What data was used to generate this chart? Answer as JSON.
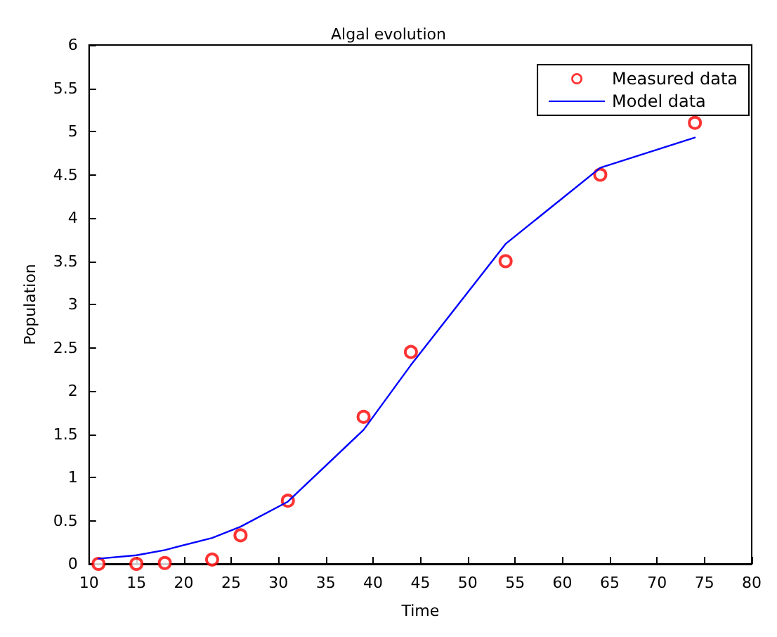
{
  "chart_data": {
    "type": "scatter",
    "title": "Algal evolution",
    "xlabel": "Time",
    "ylabel": "Population",
    "xlim": [
      10,
      80
    ],
    "xticks": [
      10,
      15,
      20,
      25,
      30,
      35,
      40,
      45,
      50,
      55,
      60,
      65,
      70,
      75,
      80
    ],
    "ylim": [
      0,
      6
    ],
    "yticks": [
      0,
      0.5,
      1,
      1.5,
      2,
      2.5,
      3,
      3.5,
      4,
      4.5,
      5,
      5.5,
      6
    ],
    "grid": false,
    "legend": "top right",
    "series": [
      {
        "name": "Measured data",
        "marker": "circle",
        "color": "#ff0000",
        "x": [
          11,
          15,
          18,
          23,
          26,
          31,
          39,
          44,
          54,
          64,
          74
        ],
        "values": [
          0,
          0,
          0.01,
          0.05,
          0.33,
          0.73,
          1.7,
          2.45,
          3.5,
          4.5,
          5.1
        ]
      },
      {
        "name": "Model data",
        "type": "line",
        "marker": "none",
        "line_style": "solid",
        "color": "#0000ff",
        "x": [
          11,
          15,
          18,
          23,
          26,
          31,
          39,
          44,
          54,
          64,
          74
        ],
        "values": [
          0.06,
          0.1,
          0.16,
          0.3,
          0.43,
          0.72,
          1.55,
          2.3,
          3.7,
          4.58,
          4.93
        ]
      }
    ]
  }
}
